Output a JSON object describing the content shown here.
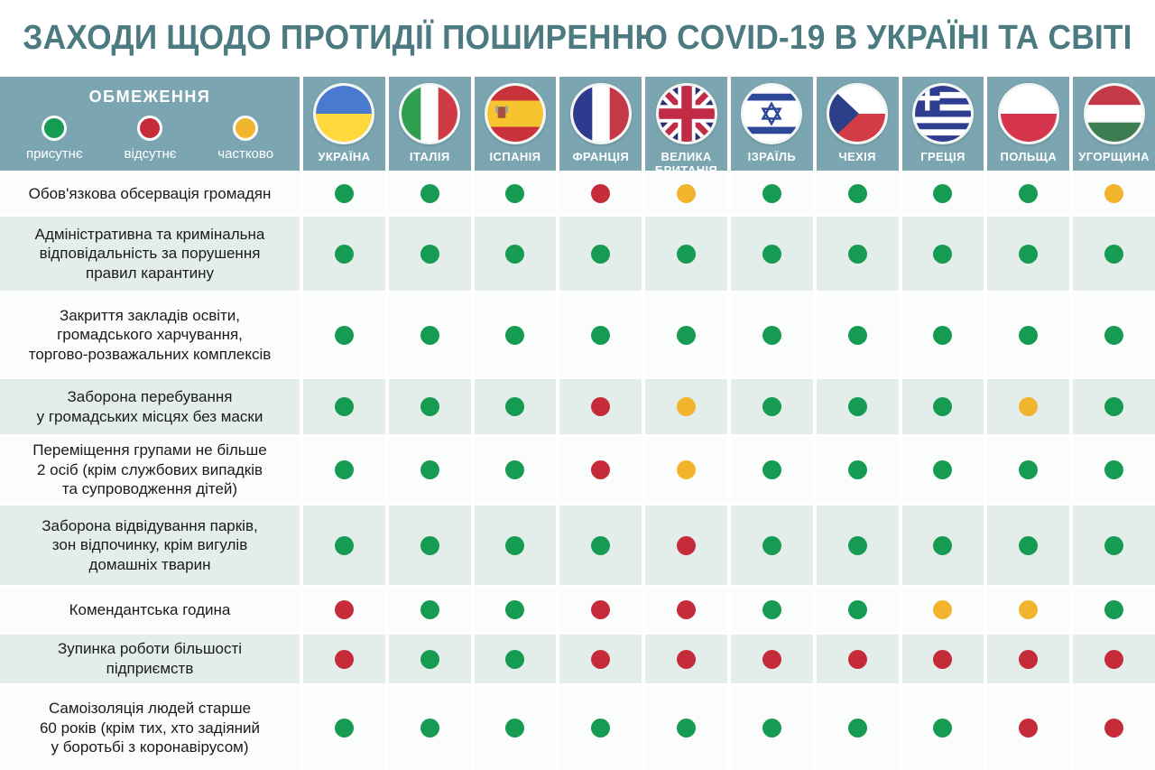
{
  "title": "ЗАХОДИ ЩОДО ПРОТИДІЇ ПОШИРЕННЮ COVID-19 В УКРАЇНІ ТА СВІТІ",
  "legend": {
    "header_label": "ОБМЕЖЕННЯ",
    "items": [
      {
        "status": "present",
        "label": "присутнє",
        "color": "#169B52"
      },
      {
        "status": "absent",
        "label": "відсутнє",
        "color": "#C52B39"
      },
      {
        "status": "partial",
        "label": "частково",
        "color": "#F2B42D"
      }
    ]
  },
  "colors": {
    "present": "#169B52",
    "absent": "#C52B39",
    "partial": "#F2B42D",
    "header_bg": "#7BA6B1",
    "row_tint": "#E3EDE9",
    "row_white": "#FBFCFC",
    "title_text": "#4C7A81"
  },
  "chart_data": {
    "type": "table",
    "title": "ЗАХОДИ ЩОДО ПРОТИДІЇ ПОШИРЕННЮ COVID-19 В УКРАЇНІ ТА СВІТІ",
    "legend": {
      "present": "присутнє",
      "absent": "відсутнє",
      "partial": "частково"
    },
    "columns": [
      {
        "name": "УКРАЇНА",
        "flag": "ukraine"
      },
      {
        "name": "ІТАЛІЯ",
        "flag": "italy"
      },
      {
        "name": "ІСПАНІЯ",
        "flag": "spain"
      },
      {
        "name": "ФРАНЦІЯ",
        "flag": "france"
      },
      {
        "name": "ВЕЛИКА\nБРИТАНІЯ",
        "flag": "uk"
      },
      {
        "name": "ІЗРАЇЛЬ",
        "flag": "israel"
      },
      {
        "name": "ЧЕХІЯ",
        "flag": "czechia"
      },
      {
        "name": "ГРЕЦІЯ",
        "flag": "greece"
      },
      {
        "name": "ПОЛЬЩА",
        "flag": "poland"
      },
      {
        "name": "УГОРЩИНА",
        "flag": "hungary"
      }
    ],
    "rows": [
      {
        "label": "Обов'язкова обсервація громадян",
        "values": [
          "present",
          "present",
          "present",
          "absent",
          "partial",
          "present",
          "present",
          "present",
          "present",
          "partial"
        ]
      },
      {
        "label": "Адміністративна та кримінальна\nвідповідальність за порушення\nправил карантину",
        "values": [
          "present",
          "present",
          "present",
          "present",
          "present",
          "present",
          "present",
          "present",
          "present",
          "present"
        ]
      },
      {
        "label": "Закриття закладів освіти,\nгромадського харчування,\nторгово-розважальних комплексів",
        "values": [
          "present",
          "present",
          "present",
          "present",
          "present",
          "present",
          "present",
          "present",
          "present",
          "present"
        ]
      },
      {
        "label": "Заборона перебування\nу громадських місцях без маски",
        "values": [
          "present",
          "present",
          "present",
          "absent",
          "partial",
          "present",
          "present",
          "present",
          "partial",
          "present"
        ]
      },
      {
        "label": "Переміщення групами не більше\n2 осіб (крім службових випадків\nта супроводження дітей)",
        "values": [
          "present",
          "present",
          "present",
          "absent",
          "partial",
          "present",
          "present",
          "present",
          "present",
          "present"
        ]
      },
      {
        "label": "Заборона відвідування парків,\nзон відпочинку, крім вигулів\nдомашніх тварин",
        "values": [
          "present",
          "present",
          "present",
          "present",
          "absent",
          "present",
          "present",
          "present",
          "present",
          "present"
        ]
      },
      {
        "label": "Комендантська година",
        "values": [
          "absent",
          "present",
          "present",
          "absent",
          "absent",
          "present",
          "present",
          "partial",
          "partial",
          "present"
        ]
      },
      {
        "label": "Зупинка роботи більшості\nпідприємств",
        "values": [
          "absent",
          "present",
          "present",
          "absent",
          "absent",
          "absent",
          "absent",
          "absent",
          "absent",
          "absent"
        ]
      },
      {
        "label": "Самоізоляція людей старше\n60 років (крім тих, хто задіяний\nу боротьбі з коронавірусом)",
        "values": [
          "present",
          "present",
          "present",
          "present",
          "present",
          "present",
          "present",
          "present",
          "absent",
          "absent"
        ]
      }
    ]
  }
}
